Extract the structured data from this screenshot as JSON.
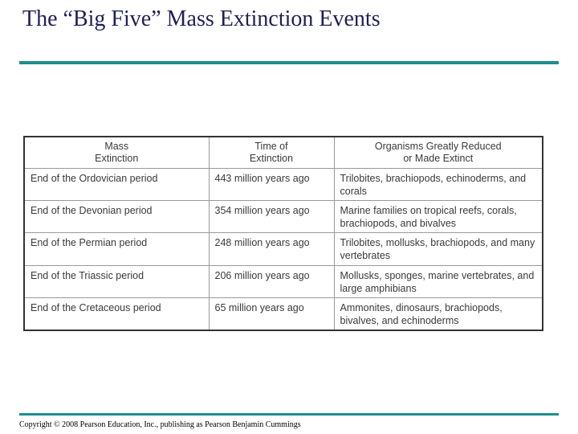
{
  "slide": {
    "title": "The “Big Five” Mass Extinction Events",
    "accent_color": "#1d8e8e",
    "title_color": "#1f1f5a"
  },
  "table": {
    "headers": [
      "Mass\nExtinction",
      "Time of\nExtinction",
      "Organisms Greatly Reduced\nor Made Extinct"
    ],
    "rows": [
      {
        "event": "End of the Ordovician period",
        "time": "443 million years ago",
        "organisms": "Trilobites, brachiopods, echinoderms, and corals"
      },
      {
        "event": "End of the Devonian period",
        "time": "354 million years ago",
        "organisms": "Marine families on tropical reefs, corals, brachiopods, and bivalves"
      },
      {
        "event": "End of the Permian period",
        "time": "248 million years ago",
        "organisms": "Trilobites, mollusks, brachiopods, and many vertebrates"
      },
      {
        "event": "End of the Triassic period",
        "time": "206 million years ago",
        "organisms": "Mollusks, sponges, marine vertebrates, and large amphibians"
      },
      {
        "event": "End of the Cretaceous period",
        "time": "65 million years ago",
        "organisms": "Ammonites, dinosaurs, brachiopods, bivalves, and echinoderms"
      }
    ]
  },
  "footer": {
    "copyright": "Copyright © 2008 Pearson Education, Inc., publishing as Pearson Benjamin Cummings"
  }
}
